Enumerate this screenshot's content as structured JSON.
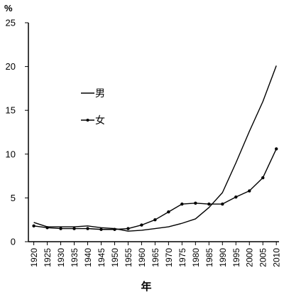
{
  "chart_data": {
    "type": "line",
    "title": "",
    "ylabel": "%",
    "xlabel": "年",
    "ylim": [
      0,
      25
    ],
    "yticks": [
      0,
      5,
      10,
      15,
      20,
      25
    ],
    "xlim": [
      1918,
      2011
    ],
    "xticks": [
      1920,
      1925,
      1930,
      1935,
      1940,
      1945,
      1950,
      1955,
      1960,
      1965,
      1970,
      1975,
      1980,
      1985,
      1990,
      1995,
      2000,
      2005,
      2010
    ],
    "grid": false,
    "legend_placement": "center-left",
    "series": [
      {
        "name": "男",
        "marker": "none",
        "color": "#000000",
        "x": [
          1920,
          1925,
          1930,
          1935,
          1940,
          1945,
          1950,
          1955,
          1960,
          1965,
          1970,
          1975,
          1980,
          1985,
          1990,
          1995,
          2000,
          2005,
          2010
        ],
        "y": [
          2.2,
          1.7,
          1.7,
          1.7,
          1.8,
          1.6,
          1.5,
          1.2,
          1.3,
          1.5,
          1.7,
          2.1,
          2.6,
          3.9,
          5.6,
          9.0,
          12.6,
          16.0,
          20.1
        ]
      },
      {
        "name": "女",
        "marker": "dot",
        "color": "#000000",
        "x": [
          1920,
          1925,
          1930,
          1935,
          1940,
          1945,
          1950,
          1955,
          1960,
          1965,
          1970,
          1975,
          1980,
          1985,
          1990,
          1995,
          2000,
          2005,
          2010
        ],
        "y": [
          1.8,
          1.6,
          1.5,
          1.5,
          1.5,
          1.4,
          1.4,
          1.5,
          1.9,
          2.5,
          3.4,
          4.3,
          4.4,
          4.3,
          4.3,
          5.1,
          5.8,
          7.3,
          10.6
        ]
      }
    ]
  }
}
